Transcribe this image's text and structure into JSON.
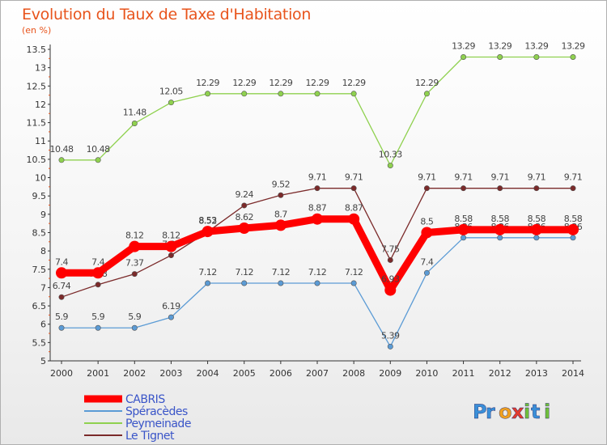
{
  "chart_data": {
    "type": "line",
    "title": "Evolution du Taux de Taxe d'Habitation",
    "subtitle": "(en %)",
    "x": [
      "2000",
      "2001",
      "2002",
      "2003",
      "2004",
      "2005",
      "2006",
      "2007",
      "2008",
      "2009",
      "2010",
      "2011",
      "2012",
      "2013",
      "2014"
    ],
    "ylim": [
      5,
      13.5
    ],
    "yticks": [
      "5",
      "5.5",
      "6",
      "6.5",
      "7",
      "7.5",
      "8",
      "8.5",
      "9",
      "9.5",
      "10",
      "10.5",
      "11",
      "11.5",
      "12",
      "12.5",
      "13",
      "13.5"
    ],
    "grid": false,
    "legend_position": "bottom-left",
    "series": [
      {
        "name": "Peymeinade",
        "color": "#8fd14f",
        "values": [
          10.48,
          10.48,
          11.48,
          12.05,
          12.29,
          12.29,
          12.29,
          12.29,
          12.29,
          10.33,
          12.29,
          13.29,
          13.29,
          13.29,
          13.29
        ]
      },
      {
        "name": "Le Tignet",
        "color": "#7b2a2a",
        "values": [
          6.74,
          7.08,
          7.37,
          7.88,
          8.52,
          9.24,
          9.52,
          9.71,
          9.71,
          7.75,
          9.71,
          9.71,
          9.71,
          9.71,
          9.71
        ]
      },
      {
        "name": "Spéracèdes",
        "color": "#5b9bd5",
        "values": [
          5.9,
          5.9,
          5.9,
          6.19,
          7.12,
          7.12,
          7.12,
          7.12,
          7.12,
          5.39,
          7.4,
          8.36,
          8.36,
          8.36,
          8.36
        ]
      },
      {
        "name": "CABRIS",
        "color": "#ff0000",
        "values": [
          7.4,
          7.4,
          8.12,
          8.12,
          8.53,
          8.62,
          8.7,
          8.87,
          8.87,
          6.93,
          8.5,
          8.58,
          8.58,
          8.58,
          8.58
        ]
      }
    ],
    "labels": {
      "Peymeinade": [
        "10.48",
        "10.48",
        "11.48",
        "12.05",
        "12.29",
        "12.29",
        "12.29",
        "12.29",
        "12.29",
        "10.33",
        "12.29",
        "13.29",
        "13.29",
        "13.29",
        "13.29"
      ],
      "Le Tignet": [
        "6.74",
        "7.08",
        "7.37",
        "7.88",
        "8.52",
        "9.24",
        "9.52",
        "9.71",
        "9.71",
        "7.75",
        "9.71",
        "9.71",
        "9.71",
        "9.71",
        "9.71"
      ],
      "Spéracèdes": [
        "5.9",
        "5.9",
        "5.9",
        "6.19",
        "7.12",
        "7.12",
        "7.12",
        "7.12",
        "7.12",
        "5.39",
        "7.4",
        "8.36",
        "8.36",
        "8.36",
        "8.36"
      ],
      "CABRIS": [
        "7.4",
        "7.4",
        "8.12",
        "8.12",
        "8.53",
        "8.62",
        "8.7",
        "8.87",
        "8.87",
        "6.93",
        "8.5",
        "8.58",
        "8.58",
        "8.58",
        "8.58"
      ]
    },
    "legend": [
      {
        "name": "CABRIS",
        "color": "#ff0000"
      },
      {
        "name": "Spéracèdes",
        "color": "#5b9bd5"
      },
      {
        "name": "Peymeinade",
        "color": "#8fd14f"
      },
      {
        "name": "Le Tignet",
        "color": "#7b2a2a"
      }
    ]
  },
  "logo": {
    "text": "Proxiti"
  }
}
